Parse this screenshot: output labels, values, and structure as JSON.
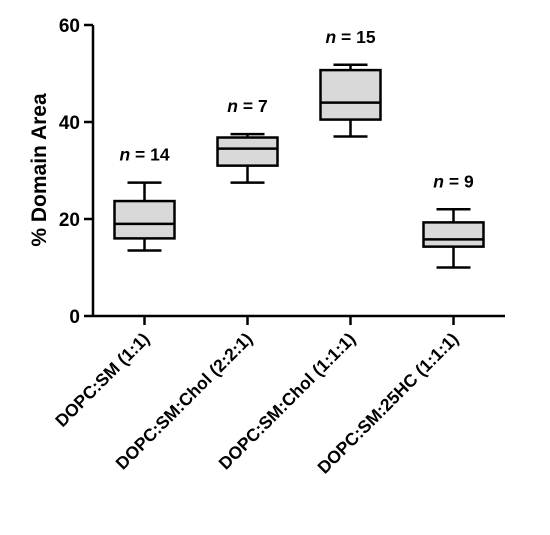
{
  "chart_data": {
    "type": "box",
    "title": "",
    "xlabel": "",
    "ylabel": "% Domain Area",
    "ylim": [
      0,
      60
    ],
    "yticks": [
      0,
      20,
      40,
      60
    ],
    "grid": false,
    "box_color": "#d9d9d9",
    "categories": [
      "DOPC:SM (1:1)",
      "DOPC:SM:Chol (2:2:1)",
      "DOPC:SM:Chol (1:1:1)",
      "DOPC:SM:25HC (1:1:1)"
    ],
    "n_labels": [
      "n = 14",
      "n = 7",
      "n = 15",
      "n = 9"
    ],
    "boxes": [
      {
        "min": 13.5,
        "q1": 16.0,
        "median": 19.0,
        "q3": 23.7,
        "max": 27.5
      },
      {
        "min": 27.5,
        "q1": 31.0,
        "median": 34.5,
        "q3": 36.8,
        "max": 37.5
      },
      {
        "min": 37.0,
        "q1": 40.5,
        "median": 44.0,
        "q3": 50.7,
        "max": 51.8
      },
      {
        "min": 10.0,
        "q1": 14.3,
        "median": 15.8,
        "q3": 19.3,
        "max": 22.0
      }
    ]
  }
}
